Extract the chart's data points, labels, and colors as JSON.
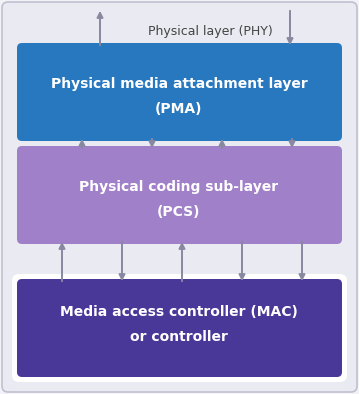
{
  "bg_color": "#f2f2f7",
  "outer_facecolor": "#eaeaf2",
  "outer_edgecolor": "#c0c0d0",
  "pma_color": "#2878c0",
  "pcs_color": "#a080c8",
  "mac_color": "#4a3898",
  "text_white": "#ffffff",
  "text_dark": "#444444",
  "arrow_color": "#8888a0",
  "phy_label": "Physical layer (PHY)",
  "pma_line1": "Physical media attachment layer",
  "pma_line2": "(PMA)",
  "pcs_line1": "Physical coding sub-layer",
  "pcs_line2": "(PCS)",
  "mac_line1": "Media access controller (MAC)",
  "mac_line2": "or controller",
  "figsize": [
    3.59,
    3.94
  ],
  "dpi": 100
}
